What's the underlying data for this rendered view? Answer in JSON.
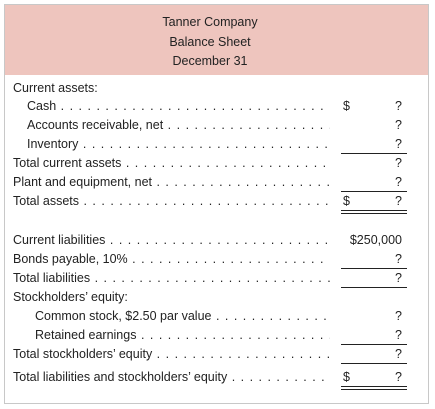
{
  "header": {
    "lines": [
      "Tanner Company",
      "Balance Sheet",
      "December 31"
    ]
  },
  "rows": [
    {
      "label": "Current assets:"
    },
    {
      "label": "Cash",
      "currency": "$",
      "value": "?"
    },
    {
      "label": "Accounts receivable, net",
      "value": "?"
    },
    {
      "label": "Inventory",
      "value": "?"
    },
    {
      "label": "Total current assets",
      "value": "?"
    },
    {
      "label": "Plant and equipment, net",
      "value": "?"
    },
    {
      "label": "Total assets",
      "currency": "$",
      "value": "?"
    },
    {
      "label": "Current liabilities",
      "value": "$250,000"
    },
    {
      "label": "Bonds payable, 10%",
      "value": "?"
    },
    {
      "label": "Total liabilities",
      "value": "?"
    },
    {
      "label": "Stockholders’ equity:"
    },
    {
      "label": "Common stock, $2.50 par value",
      "value": "?"
    },
    {
      "label": "Retained earnings",
      "value": "?"
    },
    {
      "label": "Total stockholders’ equity",
      "value": "?"
    },
    {
      "label": "Total liabilities and stockholders’ equity",
      "currency": "$",
      "value": "?"
    }
  ]
}
